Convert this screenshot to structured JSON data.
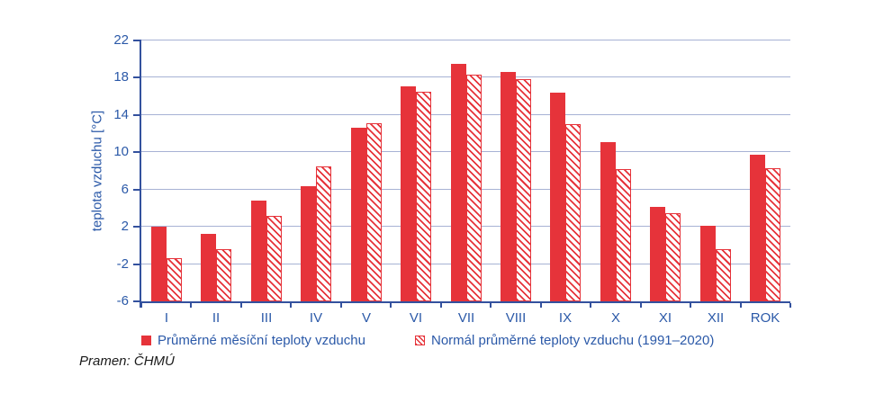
{
  "chart_data": {
    "type": "bar",
    "title": "",
    "ylabel": "teplota vzduchu [°C]",
    "xlabel": "",
    "ylim": [
      -6,
      22
    ],
    "yticks": [
      -6,
      -2,
      2,
      6,
      10,
      14,
      18,
      22
    ],
    "grid": true,
    "legend_position": "bottom",
    "baseline": -6,
    "categories": [
      "I",
      "II",
      "III",
      "IV",
      "V",
      "VI",
      "VII",
      "VIII",
      "IX",
      "X",
      "XI",
      "XII",
      "ROK"
    ],
    "series": [
      {
        "name": "Průměrné měsíční teploty vzduchu",
        "style": "solid",
        "values": [
          2.0,
          1.2,
          4.8,
          6.4,
          12.6,
          17.1,
          19.5,
          18.6,
          16.4,
          11.1,
          4.1,
          2.1,
          9.7
        ]
      },
      {
        "name": "Normál průměrné teploty vzduchu (1991–2020)",
        "style": "hatched",
        "values": [
          -1.4,
          -0.4,
          3.2,
          8.5,
          13.1,
          16.5,
          18.3,
          17.9,
          13.0,
          8.2,
          3.5,
          -0.4,
          8.3
        ]
      }
    ]
  },
  "legend": {
    "item_average": "Průměrné měsíční teploty vzduchu",
    "item_normal": "Normál průměrné teploty vzduchu (1991–2020)"
  },
  "source": {
    "label": "Pramen: ČHMÚ"
  },
  "colors": {
    "bar_red": "#e6333a",
    "label_blue": "#2b59a8",
    "gridline": "#a7b2d4",
    "axis": "#33519e"
  }
}
